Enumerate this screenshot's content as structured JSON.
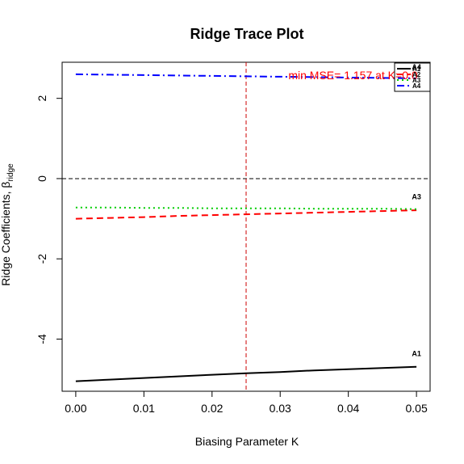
{
  "chart_data": {
    "type": "line",
    "title": "Ridge Trace Plot",
    "xlabel": "Biasing Parameter K",
    "ylabel_main": "Ridge Coefficients, ",
    "ylabel_beta": "β",
    "ylabel_sub": "ridge",
    "xlim": [
      -0.002,
      0.052
    ],
    "ylim": [
      -5.3,
      2.9
    ],
    "xticks": [
      0.0,
      0.01,
      0.02,
      0.03,
      0.04,
      0.05
    ],
    "xtick_labels": [
      "0.00",
      "0.01",
      "0.02",
      "0.03",
      "0.04",
      "0.05"
    ],
    "yticks": [
      -4,
      -2,
      0,
      2
    ],
    "ytick_labels": [
      "-4",
      "-2",
      "0",
      "2"
    ],
    "grid": false,
    "x": [
      0.0,
      0.005,
      0.01,
      0.015,
      0.02,
      0.025,
      0.03,
      0.035,
      0.04,
      0.045,
      0.05
    ],
    "series": [
      {
        "name": "A1",
        "color": "#000000",
        "dash": "solid",
        "values": [
          -5.05,
          -5.01,
          -4.97,
          -4.93,
          -4.89,
          -4.85,
          -4.82,
          -4.78,
          -4.75,
          -4.72,
          -4.69
        ]
      },
      {
        "name": "A2",
        "color": "#ff0000",
        "dash": "dashed",
        "values": [
          -1.0,
          -0.98,
          -0.96,
          -0.93,
          -0.91,
          -0.89,
          -0.87,
          -0.85,
          -0.83,
          -0.81,
          -0.79
        ]
      },
      {
        "name": "A3",
        "color": "#00cc00",
        "dash": "dotted",
        "values": [
          -0.72,
          -0.72,
          -0.73,
          -0.73,
          -0.74,
          -0.74,
          -0.74,
          -0.75,
          -0.75,
          -0.75,
          -0.76
        ]
      },
      {
        "name": "A4",
        "color": "#0000ff",
        "dash": "dashdot",
        "values": [
          2.6,
          2.59,
          2.58,
          2.57,
          2.56,
          2.55,
          2.54,
          2.53,
          2.52,
          2.51,
          2.5
        ]
      }
    ],
    "end_tags": [
      {
        "text": "A4",
        "x": 0.05,
        "y": 2.72
      },
      {
        "text": "A3",
        "x": 0.05,
        "y": -0.52
      },
      {
        "text": "A1",
        "x": 0.05,
        "y": -4.42
      }
    ],
    "zero_line": {
      "y": 0,
      "color": "#000000"
    },
    "optimal_k_line": {
      "x": 0.025,
      "color": "#cc0000"
    },
    "annotation": {
      "text": "min MSE= 1.157 at K=0.0",
      "color": "#ff0000",
      "x": 0.0312,
      "y": 2.58
    },
    "legend": {
      "position": "top-right",
      "entries": [
        {
          "name": "A1",
          "color": "#000000",
          "dash": "solid"
        },
        {
          "name": "A2",
          "color": "#ff0000",
          "dash": "dashed"
        },
        {
          "name": "A3",
          "color": "#00cc00",
          "dash": "dotted"
        },
        {
          "name": "A4",
          "color": "#0000ff",
          "dash": "dashdot"
        }
      ]
    }
  }
}
